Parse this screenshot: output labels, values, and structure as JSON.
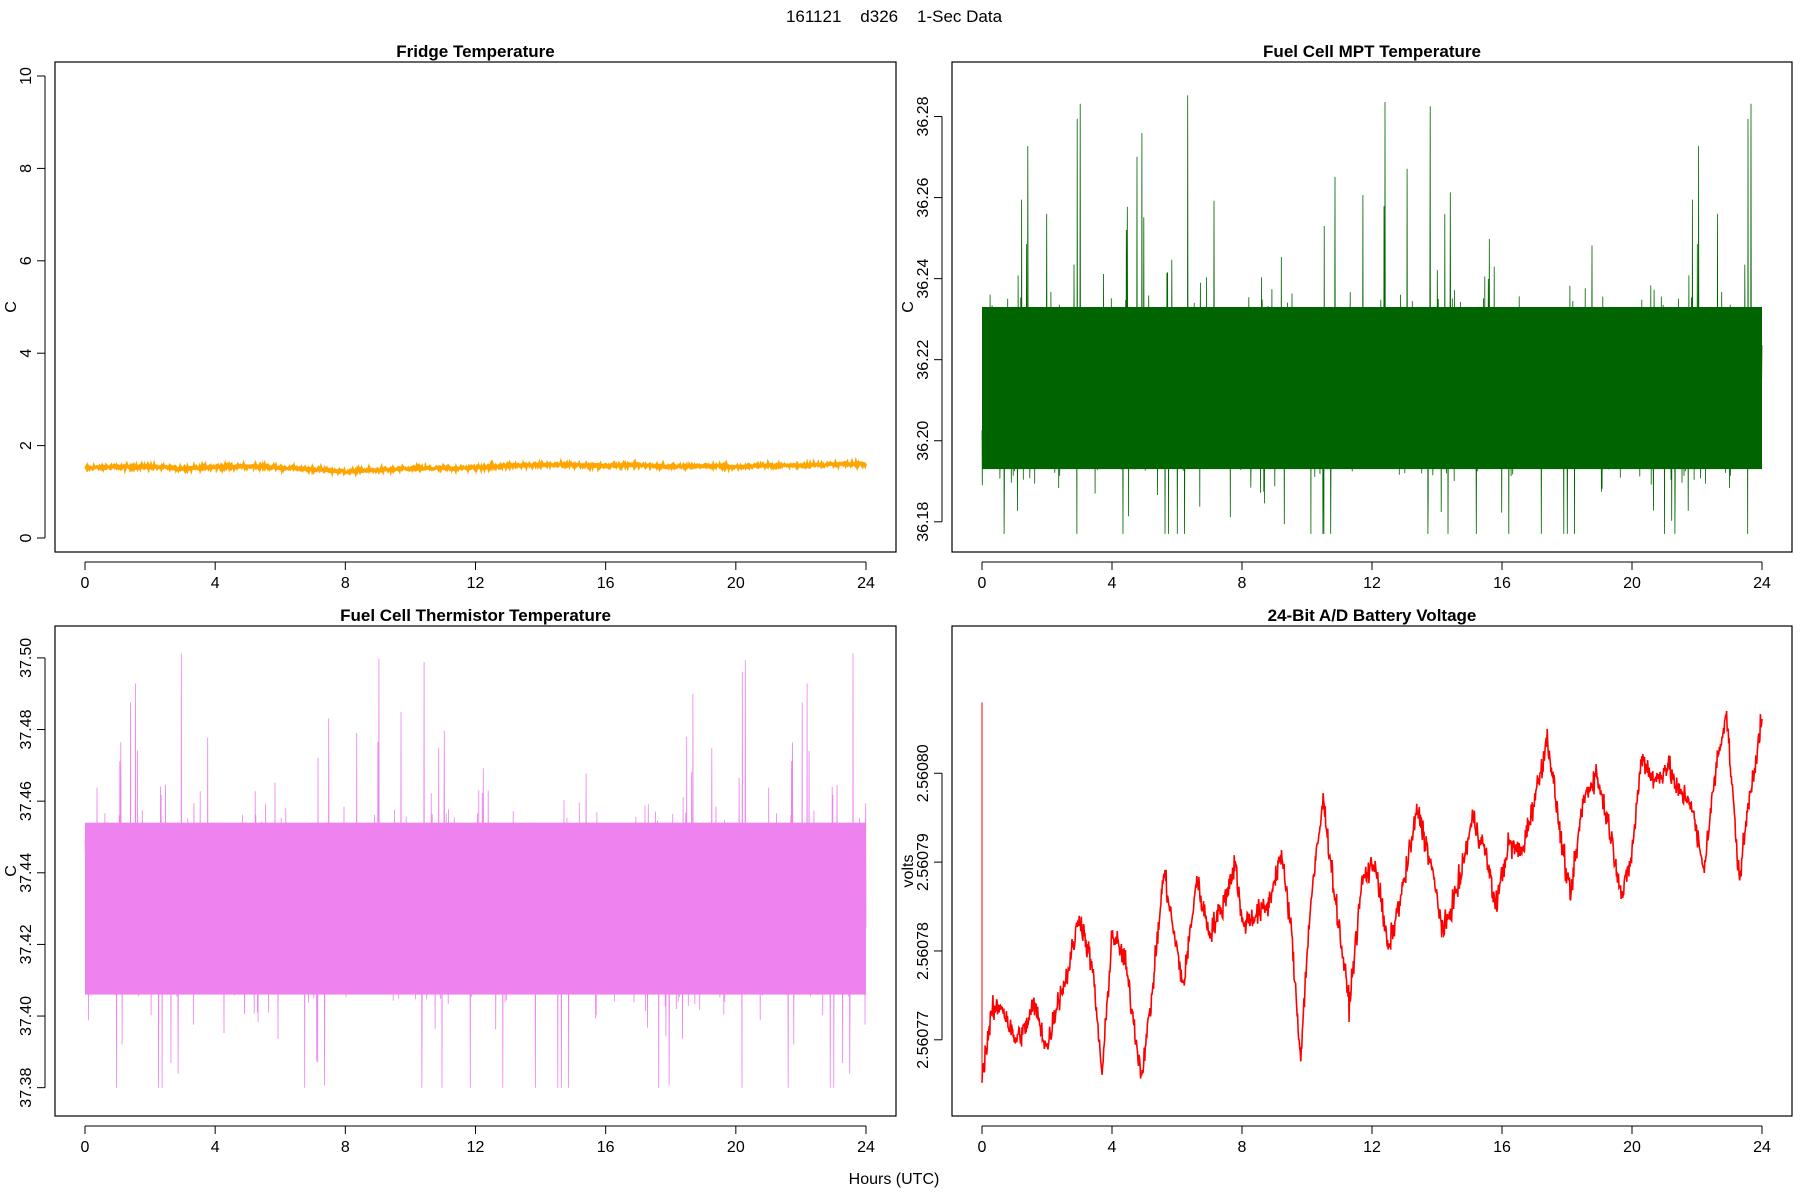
{
  "figure": {
    "title": "161121    d326    1-Sec Data",
    "xlabel": "Hours (UTC)"
  },
  "chart_data": [
    {
      "type": "line",
      "title": "Fridge Temperature",
      "ylabel": "C",
      "color": "#ffa500",
      "xlim": [
        0,
        24
      ],
      "ylim": [
        0,
        10
      ],
      "xticks": [
        0,
        4,
        8,
        12,
        16,
        20,
        24
      ],
      "yticks": [
        "0",
        "2",
        "4",
        "6",
        "8",
        "10"
      ],
      "yticks_values": [
        0,
        2,
        4,
        6,
        8,
        10
      ],
      "noise": 0.02,
      "x": [
        0,
        1,
        2,
        3,
        4,
        5,
        6,
        7,
        8,
        9,
        10,
        11,
        12,
        13,
        14,
        15,
        16,
        17,
        18,
        19,
        20,
        21,
        22,
        23,
        24
      ],
      "y": [
        1.52,
        1.54,
        1.54,
        1.51,
        1.53,
        1.56,
        1.52,
        1.49,
        1.44,
        1.47,
        1.5,
        1.51,
        1.52,
        1.57,
        1.58,
        1.59,
        1.56,
        1.59,
        1.54,
        1.56,
        1.54,
        1.57,
        1.57,
        1.59,
        1.61
      ]
    },
    {
      "type": "line",
      "title": "Fuel Cell MPT Temperature",
      "ylabel": "C",
      "color": "#006400",
      "xlim": [
        0,
        24
      ],
      "ylim": [
        36.176,
        36.29
      ],
      "xticks": [
        0,
        4,
        8,
        12,
        16,
        20,
        24
      ],
      "yticks": [
        "36.18",
        "36.20",
        "36.22",
        "36.24",
        "36.26",
        "36.28"
      ],
      "yticks_values": [
        36.18,
        36.2,
        36.22,
        36.24,
        36.26,
        36.28
      ],
      "center": 36.213,
      "band": 0.02,
      "range_min": 36.177,
      "range_max": 36.286
    },
    {
      "type": "line",
      "title": "Fuel Cell Thermistor Temperature",
      "ylabel": "C",
      "color": "#ee82ee",
      "xlim": [
        0,
        24
      ],
      "ylim": [
        37.376,
        37.505
      ],
      "xticks": [
        0,
        4,
        8,
        12,
        16,
        20,
        24
      ],
      "yticks": [
        "37.38",
        "37.40",
        "37.42",
        "37.44",
        "37.46",
        "37.48",
        "37.50"
      ],
      "yticks_values": [
        37.38,
        37.4,
        37.42,
        37.44,
        37.46,
        37.48,
        37.5
      ],
      "center": 37.43,
      "band": 0.024,
      "range_min": 37.38,
      "range_max": 37.502
    },
    {
      "type": "line",
      "title": "24-Bit A/D Battery Voltage",
      "ylabel": "volts",
      "color": "#ff0000",
      "xlim": [
        0,
        24
      ],
      "ylim": [
        2.560763,
        2.560815
      ],
      "xticks": [
        0,
        4,
        8,
        12,
        16,
        20,
        24
      ],
      "yticks": [
        "2.56077",
        "2.56078",
        "2.56079",
        "2.56080"
      ],
      "yticks_values": [
        2.56077,
        2.56078,
        2.56079,
        2.5608
      ],
      "noise": 7e-07,
      "spike_x": 0,
      "spike_y": 2.560808,
      "x": [
        0,
        0.3,
        0.6,
        1.0,
        1.3,
        1.6,
        2.0,
        2.3,
        2.6,
        3.0,
        3.4,
        3.7,
        4.0,
        4.4,
        4.9,
        5.2,
        5.6,
        5.9,
        6.2,
        6.6,
        7.0,
        7.4,
        7.8,
        8.0,
        8.4,
        8.8,
        9.2,
        9.5,
        9.8,
        10.1,
        10.5,
        10.9,
        11.3,
        11.7,
        12.1,
        12.5,
        13.0,
        13.4,
        13.8,
        14.2,
        14.7,
        15.1,
        15.5,
        15.8,
        16.2,
        16.6,
        17.0,
        17.4,
        17.8,
        18.1,
        18.5,
        18.9,
        19.3,
        19.7,
        20.0,
        20.3,
        20.7,
        21.1,
        21.4,
        21.8,
        22.2,
        22.6,
        22.9,
        23.3,
        23.6,
        24.0
      ],
      "y": [
        2.560766,
        2.560773,
        2.560774,
        2.56077,
        2.560771,
        2.560774,
        2.560769,
        2.560774,
        2.560777,
        2.560784,
        2.560778,
        2.560766,
        2.560782,
        2.560779,
        2.560766,
        2.560774,
        2.560789,
        2.560782,
        2.560776,
        2.560788,
        2.560782,
        2.560785,
        2.56079,
        2.560783,
        2.560784,
        2.560785,
        2.560791,
        2.560783,
        2.560768,
        2.560785,
        2.560797,
        2.560785,
        2.560774,
        2.560788,
        2.56079,
        2.56078,
        2.560788,
        2.560796,
        2.56079,
        2.560782,
        2.560788,
        2.560795,
        2.560791,
        2.560785,
        2.560792,
        2.560791,
        2.560797,
        2.560804,
        2.560793,
        2.560786,
        2.560797,
        2.5608,
        2.560794,
        2.560786,
        2.560791,
        2.560802,
        2.560799,
        2.560801,
        2.560798,
        2.560797,
        2.560789,
        2.560801,
        2.560807,
        2.560788,
        2.560797,
        2.560806
      ]
    }
  ]
}
